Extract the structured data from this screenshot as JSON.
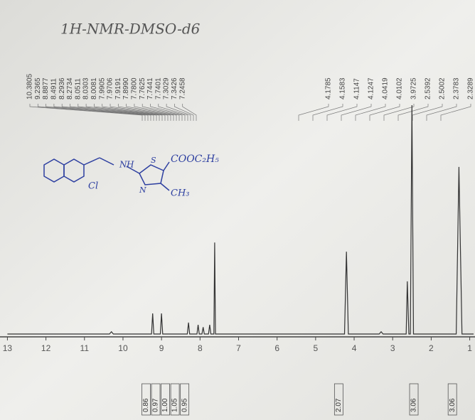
{
  "chart_data": {
    "type": "line",
    "title": "1H-NMR-DMSO-d6",
    "x": [
      13.0,
      10.35,
      10.3,
      10.25,
      9.26,
      9.23,
      9.2,
      9.03,
      9.0,
      8.97,
      8.33,
      8.3,
      8.27,
      8.08,
      8.05,
      8.02,
      7.95,
      7.92,
      7.89,
      7.78,
      7.75,
      7.72,
      7.64,
      7.62,
      7.6,
      4.25,
      4.2,
      4.15,
      3.35,
      3.3,
      3.25,
      2.65,
      2.62,
      2.58,
      2.54,
      2.5,
      2.46,
      1.35,
      1.28,
      1.2,
      0.9
    ],
    "values": [
      0,
      0,
      1,
      0,
      0,
      9,
      0,
      0,
      9,
      0,
      0,
      5,
      0,
      0,
      4,
      0,
      0,
      3,
      0,
      0,
      4,
      0,
      0,
      40,
      0,
      0,
      36,
      0,
      0,
      1,
      0,
      0,
      23,
      0,
      0,
      100,
      0,
      0,
      73,
      0,
      0
    ],
    "color": "#333333",
    "xlim": [
      13.1,
      0.9
    ],
    "ylim": [
      0,
      100
    ],
    "xticks": [
      13,
      12,
      11,
      10,
      9,
      8,
      7,
      6,
      5,
      4,
      3,
      2,
      1
    ],
    "peak_labels": [
      "10.3805",
      "9.2365",
      "8.8877",
      "8.4911",
      "8.2936",
      "8.2734",
      "8.0511",
      "8.0303",
      "8.0081",
      "7.9905",
      "7.9706",
      "7.9191",
      "7.8990",
      "7.7800",
      "7.7625",
      "7.7441",
      "7.7401",
      "7.3029",
      "7.3426",
      "7.2458",
      "4.1785",
      "4.1583",
      "4.1147",
      "4.1247",
      "4.0419",
      "4.0102",
      "3.9725",
      "2.5392",
      "2.5002",
      "2.3783",
      "2.3289"
    ],
    "integrals": [
      {
        "x": 9.4,
        "label": "0.86"
      },
      {
        "x": 9.15,
        "label": "0.97"
      },
      {
        "x": 8.9,
        "label": "1.00"
      },
      {
        "x": 8.65,
        "label": "1.05"
      },
      {
        "x": 8.4,
        "label": "0.95"
      },
      {
        "x": 4.4,
        "label": "2.07"
      },
      {
        "x": 2.45,
        "label": "3.06"
      },
      {
        "x": 1.45,
        "label": "3.06"
      }
    ],
    "annotations": [
      "N",
      "H",
      "S",
      "COOC₂H₅",
      "Cl",
      "N",
      "CH₃"
    ]
  }
}
